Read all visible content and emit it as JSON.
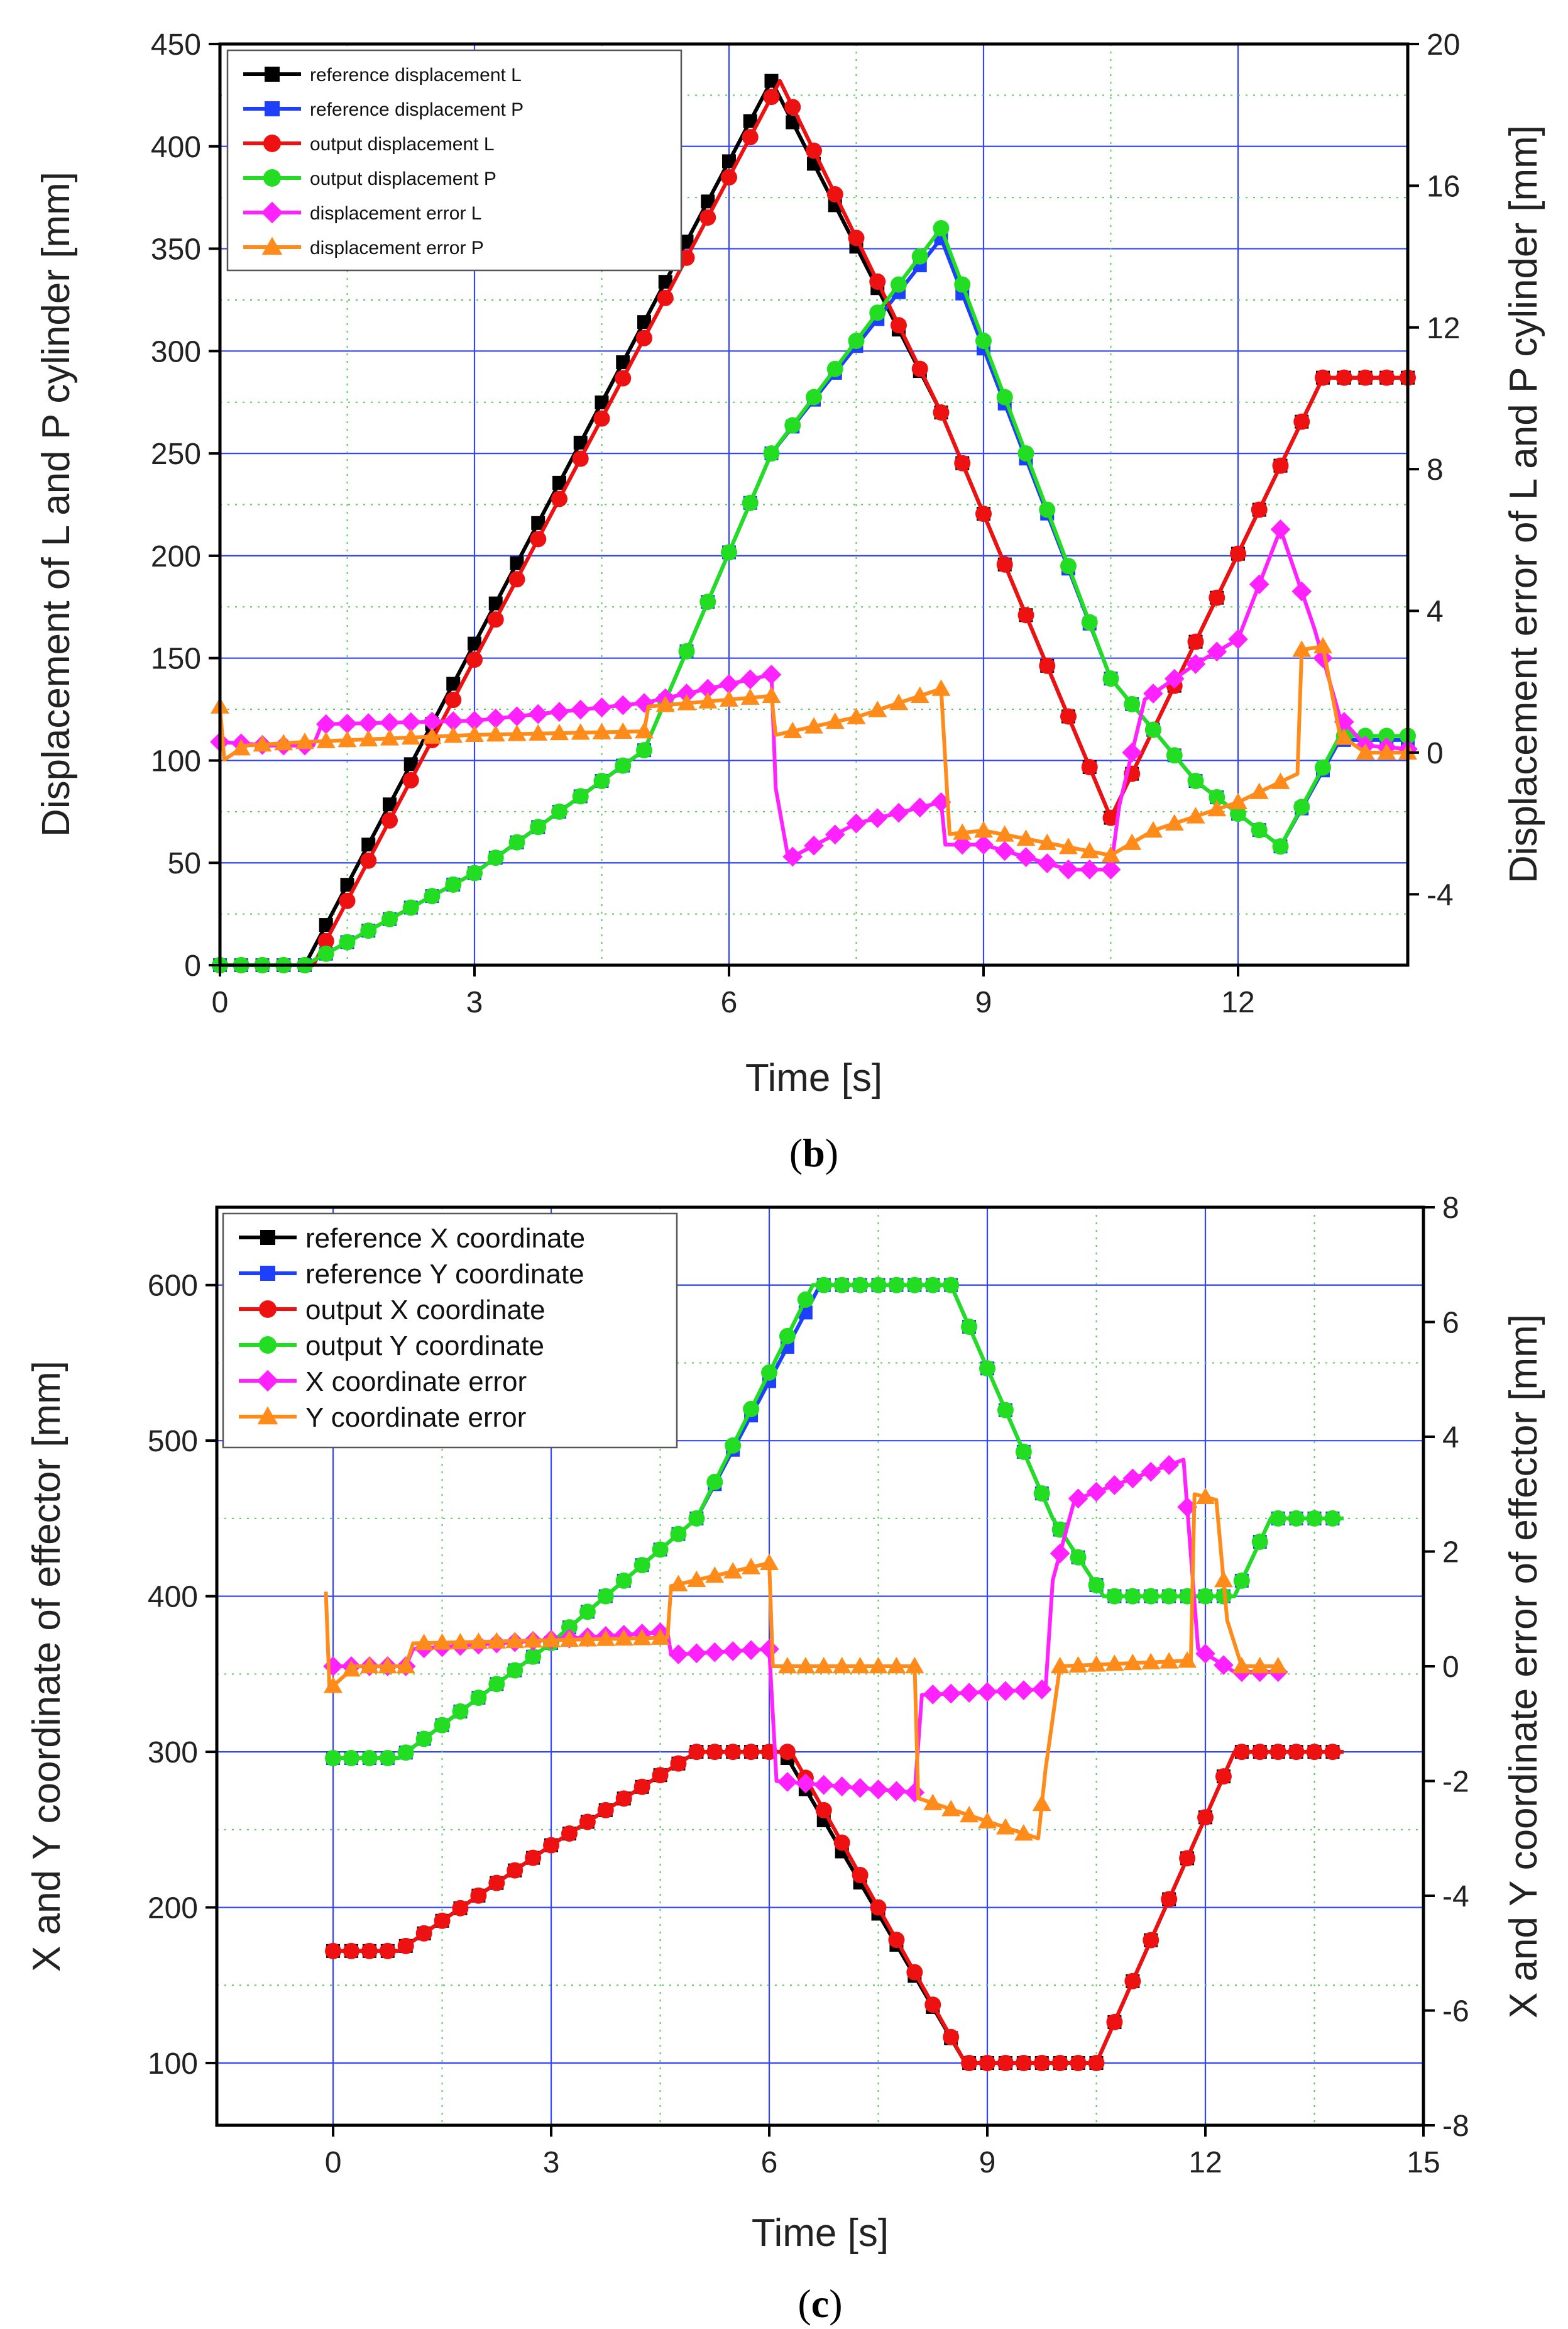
{
  "chart_data": [
    {
      "type": "line",
      "caption": "b",
      "xlabel": "Time [s]",
      "ylabel": "Displacement of L and P cylinder [mm]",
      "y2label": "Displacement error of L and P cylinder [mm]",
      "xlim": [
        0,
        14
      ],
      "ylim": [
        0,
        450
      ],
      "y2lim": [
        -6,
        20
      ],
      "xticks": [
        0,
        3,
        6,
        9,
        12
      ],
      "yticks": [
        0,
        50,
        100,
        150,
        200,
        250,
        300,
        350,
        400,
        450
      ],
      "y2ticks": [
        -4,
        0,
        4,
        8,
        12,
        16,
        20
      ],
      "grid": true,
      "legend_position": "top-left",
      "series": [
        {
          "name": "reference displacement L",
          "color": "#000000",
          "marker": "square",
          "axis": "left",
          "points": [
            [
              0,
              0
            ],
            [
              1.0,
              0
            ],
            [
              6.5,
              432
            ],
            [
              8.5,
              270
            ],
            [
              10.5,
              72
            ],
            [
              13.0,
              287
            ],
            [
              14,
              287
            ]
          ]
        },
        {
          "name": "reference displacement P",
          "color": "#1f3fff",
          "marker": "square",
          "axis": "left",
          "points": [
            [
              0,
              0
            ],
            [
              1.0,
              0
            ],
            [
              3,
              45
            ],
            [
              5,
              105
            ],
            [
              6.5,
              250
            ],
            [
              8.5,
              355
            ],
            [
              10.5,
              140
            ],
            [
              11.5,
              90
            ],
            [
              12.5,
              58
            ],
            [
              13.2,
              110
            ],
            [
              14,
              110
            ]
          ]
        },
        {
          "name": "output displacement L",
          "color": "#ee1111",
          "marker": "circle",
          "axis": "left",
          "points": [
            [
              0,
              0
            ],
            [
              1.1,
              0
            ],
            [
              6.6,
              432
            ],
            [
              8.5,
              270
            ],
            [
              10.5,
              72
            ],
            [
              13.0,
              287
            ],
            [
              14,
              287
            ]
          ]
        },
        {
          "name": "output displacement P",
          "color": "#22dd22",
          "marker": "circle",
          "axis": "left",
          "points": [
            [
              0,
              0
            ],
            [
              1.0,
              0
            ],
            [
              3,
              45
            ],
            [
              5,
              105
            ],
            [
              6.5,
              250
            ],
            [
              8.5,
              360
            ],
            [
              10.5,
              140
            ],
            [
              11.5,
              90
            ],
            [
              12.5,
              58
            ],
            [
              13.2,
              112
            ],
            [
              14,
              112
            ]
          ]
        },
        {
          "name": "displacement error L",
          "color": "#ff22ff",
          "marker": "diamond",
          "axis": "right",
          "points": [
            [
              0,
              0.3
            ],
            [
              0.6,
              0.2
            ],
            [
              1.1,
              0.2
            ],
            [
              1.2,
              0.8
            ],
            [
              3,
              0.9
            ],
            [
              5,
              1.4
            ],
            [
              6.5,
              2.2
            ],
            [
              6.55,
              -1.0
            ],
            [
              6.7,
              -3.0
            ],
            [
              7.5,
              -2.0
            ],
            [
              8.5,
              -1.4
            ],
            [
              8.55,
              -2.6
            ],
            [
              9,
              -2.6
            ],
            [
              10,
              -3.3
            ],
            [
              10.5,
              -3.3
            ],
            [
              10.6,
              -1.5
            ],
            [
              10.9,
              1.5
            ],
            [
              11.5,
              2.5
            ],
            [
              12,
              3.2
            ],
            [
              12.5,
              6.3
            ],
            [
              12.9,
              3.5
            ],
            [
              13.2,
              1.0
            ],
            [
              13.5,
              0.2
            ],
            [
              14,
              0.1
            ]
          ]
        },
        {
          "name": "displacement error P",
          "color": "#ff8c1a",
          "marker": "triangle",
          "axis": "right",
          "points": [
            [
              0,
              1.3
            ],
            [
              0.05,
              -0.2
            ],
            [
              0.3,
              0.2
            ],
            [
              1,
              0.3
            ],
            [
              3,
              0.5
            ],
            [
              5,
              0.6
            ],
            [
              5.05,
              1.3
            ],
            [
              6.5,
              1.6
            ],
            [
              6.55,
              0.5
            ],
            [
              7.5,
              1.0
            ],
            [
              8.5,
              1.8
            ],
            [
              8.6,
              -2.3
            ],
            [
              9,
              -2.2
            ],
            [
              10.5,
              -2.9
            ],
            [
              11,
              -2.2
            ],
            [
              12,
              -1.4
            ],
            [
              12.7,
              -0.6
            ],
            [
              12.75,
              2.9
            ],
            [
              13.0,
              3.0
            ],
            [
              13.2,
              0.5
            ],
            [
              13.5,
              0.0
            ],
            [
              14,
              0.0
            ]
          ]
        }
      ]
    },
    {
      "type": "line",
      "caption": "c",
      "xlabel": "Time [s]",
      "ylabel": "X and Y coordinate of effector [mm]",
      "y2label": "X and Y coordinate error of effector [mm]",
      "xlim": [
        -1.6,
        15
      ],
      "ylim": [
        60,
        650
      ],
      "y2lim": [
        -8,
        8
      ],
      "xticks": [
        0,
        3,
        6,
        9,
        12,
        15
      ],
      "yticks": [
        100,
        200,
        300,
        400,
        500,
        600
      ],
      "y2ticks": [
        -8,
        -6,
        -4,
        -2,
        0,
        2,
        4,
        6,
        8
      ],
      "grid": true,
      "legend_position": "top-left",
      "series": [
        {
          "name": "reference X coordinate",
          "color": "#000000",
          "marker": "square",
          "axis": "left",
          "points": [
            [
              0,
              172
            ],
            [
              0.9,
              172
            ],
            [
              3,
              240
            ],
            [
              5,
              300
            ],
            [
              6.2,
              300
            ],
            [
              8.7,
              100
            ],
            [
              10.5,
              100
            ],
            [
              12.4,
              300
            ],
            [
              13.9,
              300
            ]
          ]
        },
        {
          "name": "reference Y coordinate",
          "color": "#1f3fff",
          "marker": "square",
          "axis": "left",
          "points": [
            [
              0,
              296
            ],
            [
              0.9,
              296
            ],
            [
              3,
              370
            ],
            [
              5,
              450
            ],
            [
              6.7,
              600
            ],
            [
              8.5,
              600
            ],
            [
              9.9,
              450
            ],
            [
              10.6,
              400
            ],
            [
              12.4,
              400
            ],
            [
              12.9,
              450
            ],
            [
              13.9,
              450
            ]
          ]
        },
        {
          "name": "output X coordinate",
          "color": "#ee1111",
          "marker": "circle",
          "axis": "left",
          "points": [
            [
              0,
              172
            ],
            [
              0.9,
              172
            ],
            [
              3,
              240
            ],
            [
              5,
              300
            ],
            [
              6.3,
              300
            ],
            [
              8.7,
              100
            ],
            [
              10.5,
              100
            ],
            [
              12.4,
              300
            ],
            [
              13.9,
              300
            ]
          ]
        },
        {
          "name": "output Y coordinate",
          "color": "#22dd22",
          "marker": "circle",
          "axis": "left",
          "points": [
            [
              0,
              296
            ],
            [
              0.9,
              296
            ],
            [
              3,
              370
            ],
            [
              5,
              450
            ],
            [
              6.6,
              600
            ],
            [
              8.5,
              600
            ],
            [
              9.9,
              450
            ],
            [
              10.6,
              400
            ],
            [
              12.4,
              400
            ],
            [
              12.9,
              450
            ],
            [
              13.9,
              450
            ]
          ]
        },
        {
          "name": "X coordinate error",
          "color": "#ff22ff",
          "marker": "diamond",
          "axis": "right",
          "points": [
            [
              -0.1,
              0
            ],
            [
              1,
              0
            ],
            [
              1.1,
              0.3
            ],
            [
              4.6,
              0.6
            ],
            [
              4.65,
              0.2
            ],
            [
              6.0,
              0.3
            ],
            [
              6.1,
              -2.0
            ],
            [
              8,
              -2.2
            ],
            [
              8.1,
              -0.5
            ],
            [
              9.8,
              -0.4
            ],
            [
              9.9,
              1.5
            ],
            [
              10.2,
              2.9
            ],
            [
              11.7,
              3.6
            ],
            [
              11.9,
              0.3
            ],
            [
              12.4,
              -0.1
            ],
            [
              13,
              -0.1
            ]
          ]
        },
        {
          "name": "Y coordinate error",
          "color": "#ff8c1a",
          "marker": "triangle",
          "axis": "right",
          "points": [
            [
              -0.1,
              1.3
            ],
            [
              -0.05,
              -0.4
            ],
            [
              0.3,
              0
            ],
            [
              1,
              0
            ],
            [
              1.1,
              0.4
            ],
            [
              4.6,
              0.5
            ],
            [
              4.65,
              1.4
            ],
            [
              6.0,
              1.8
            ],
            [
              6.05,
              0
            ],
            [
              8,
              0
            ],
            [
              8.05,
              -2.3
            ],
            [
              9.7,
              -3.0
            ],
            [
              9.8,
              -1.8
            ],
            [
              10.0,
              0
            ],
            [
              11.8,
              0.1
            ],
            [
              11.85,
              3.0
            ],
            [
              12.15,
              2.9
            ],
            [
              12.3,
              0.8
            ],
            [
              12.5,
              0
            ],
            [
              13,
              0
            ]
          ]
        }
      ]
    }
  ]
}
